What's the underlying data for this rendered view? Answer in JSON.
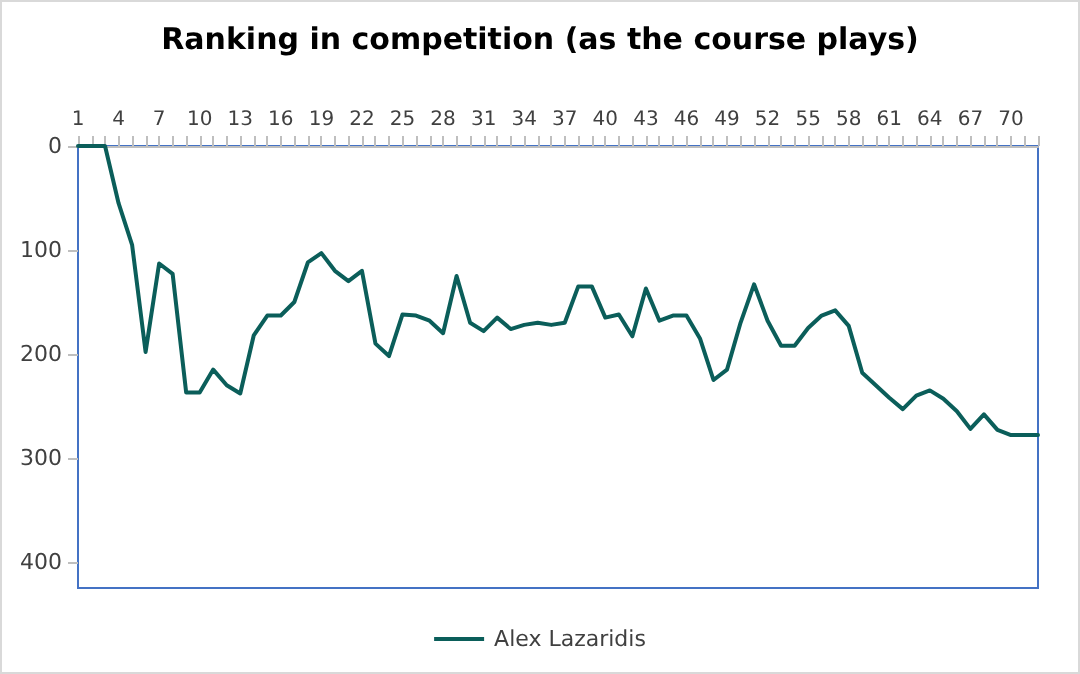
{
  "chart_data": {
    "type": "line",
    "title": "Ranking in competition (as the course plays)",
    "categories": [
      "1",
      null,
      null,
      "4",
      null,
      null,
      "7",
      null,
      null,
      "10",
      null,
      null,
      "13",
      null,
      null,
      "16",
      null,
      null,
      "19",
      null,
      null,
      "22",
      null,
      null,
      "25",
      null,
      null,
      "28",
      null,
      null,
      "31",
      null,
      null,
      "34",
      null,
      null,
      "37",
      null,
      null,
      "40",
      null,
      null,
      "43",
      null,
      null,
      "46",
      null,
      null,
      "49",
      null,
      null,
      "52",
      null,
      null,
      "55",
      null,
      null,
      "58",
      null,
      null,
      "61",
      null,
      null,
      "64",
      null,
      null,
      "67",
      null,
      null,
      "70",
      null,
      null
    ],
    "series": [
      {
        "name": "Alex Lazaridis",
        "color": "#0b5e5a",
        "values": [
          0,
          0,
          0,
          55,
          95,
          198,
          113,
          123,
          237,
          237,
          215,
          230,
          238,
          182,
          163,
          163,
          150,
          112,
          103,
          120,
          130,
          120,
          190,
          202,
          162,
          163,
          168,
          180,
          125,
          170,
          178,
          165,
          176,
          172,
          170,
          172,
          170,
          135,
          135,
          165,
          162,
          183,
          137,
          168,
          163,
          163,
          185,
          225,
          215,
          170,
          133,
          168,
          192,
          192,
          175,
          163,
          158,
          173,
          218,
          230,
          242,
          253,
          240,
          235,
          243,
          255,
          272,
          258,
          273,
          278,
          278,
          278
        ]
      }
    ],
    "ylim": [
      425,
      0
    ],
    "yticks": [
      0,
      100,
      200,
      300,
      400
    ],
    "grid": false,
    "legend": "bottom",
    "marker": "none",
    "line_style": "solid"
  }
}
